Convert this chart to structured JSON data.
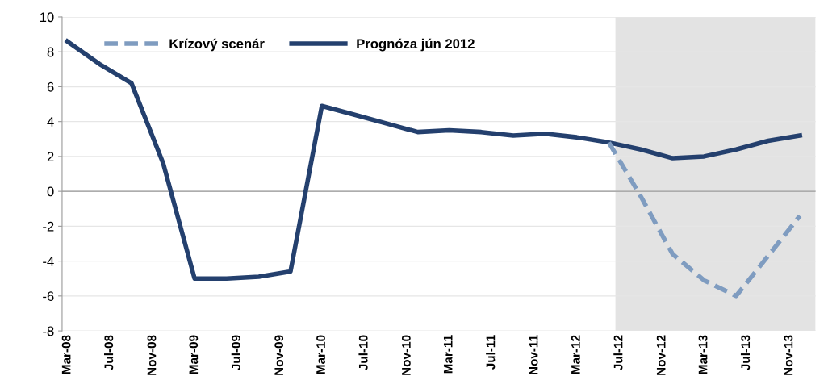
{
  "chart_data": {
    "type": "line",
    "series": [
      {
        "name": "Krízový scenár",
        "color": "#7f9cc0",
        "line_style": "dashed",
        "x": [
          "2012-06",
          "2012-09",
          "2012-12",
          "2013-03",
          "2013-06",
          "2013-09",
          "2013-12"
        ],
        "values": [
          2.8,
          -0.3,
          -3.6,
          -5.1,
          -6.0,
          -3.7,
          -1.4
        ]
      },
      {
        "name": "Prognóza jún 2012",
        "color": "#24406e",
        "line_style": "solid",
        "x": [
          "2008-03",
          "2008-06",
          "2008-09",
          "2008-12",
          "2009-03",
          "2009-06",
          "2009-09",
          "2009-12",
          "2010-03",
          "2010-06",
          "2010-09",
          "2010-12",
          "2011-03",
          "2011-06",
          "2011-09",
          "2011-12",
          "2012-03",
          "2012-06",
          "2012-09",
          "2012-12",
          "2013-03",
          "2013-06",
          "2013-09",
          "2013-12"
        ],
        "values": [
          8.6,
          7.3,
          6.2,
          1.6,
          -5.0,
          -5.0,
          -4.9,
          -4.6,
          4.9,
          4.4,
          3.9,
          3.4,
          3.5,
          3.4,
          3.2,
          3.3,
          3.1,
          2.8,
          2.4,
          1.9,
          2.0,
          2.4,
          2.9,
          3.2
        ]
      }
    ],
    "xlim": [
      "2008-02-15",
      "2014-01-15"
    ],
    "xticks": [
      {
        "value": "2008-03",
        "label": "Mar-08"
      },
      {
        "value": "2008-07",
        "label": "Jul-08"
      },
      {
        "value": "2008-11",
        "label": "Nov-08"
      },
      {
        "value": "2009-03",
        "label": "Mar-09"
      },
      {
        "value": "2009-07",
        "label": "Jul-09"
      },
      {
        "value": "2009-11",
        "label": "Nov-09"
      },
      {
        "value": "2010-03",
        "label": "Mar-10"
      },
      {
        "value": "2010-07",
        "label": "Jul-10"
      },
      {
        "value": "2010-11",
        "label": "Nov-10"
      },
      {
        "value": "2011-03",
        "label": "Mar-11"
      },
      {
        "value": "2011-07",
        "label": "Jul-11"
      },
      {
        "value": "2011-11",
        "label": "Nov-11"
      },
      {
        "value": "2012-03",
        "label": "Mar-12"
      },
      {
        "value": "2012-07",
        "label": "Jul-12"
      },
      {
        "value": "2012-11",
        "label": "Nov-12"
      },
      {
        "value": "2013-03",
        "label": "Mar-13"
      },
      {
        "value": "2013-07",
        "label": "Jul-13"
      },
      {
        "value": "2013-11",
        "label": "Nov-13"
      }
    ],
    "ylim": [
      -8,
      10
    ],
    "yticks": [
      -8,
      -6,
      -4,
      -2,
      0,
      2,
      4,
      6,
      8,
      10
    ],
    "bands": [
      {
        "axis": "x",
        "from": "2012-06-20",
        "to": "2014-01-15",
        "color": "#e3e3e3"
      }
    ],
    "grid": "y",
    "legend": "top left",
    "marker": "none"
  }
}
